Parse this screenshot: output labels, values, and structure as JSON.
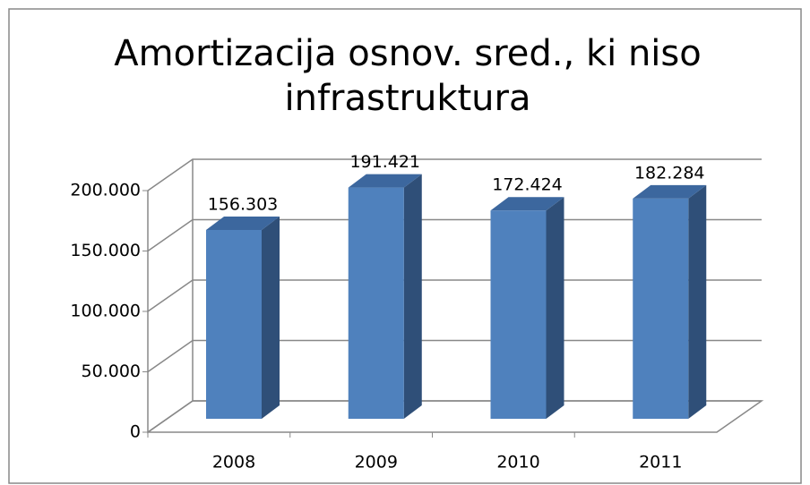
{
  "chart_data": {
    "type": "bar3d",
    "title": [
      "Amortizacija osnov. sred., ki niso",
      "infrastruktura"
    ],
    "categories": [
      "2008",
      "2009",
      "2010",
      "2011"
    ],
    "values": [
      156303,
      191421,
      172424,
      182284
    ],
    "value_labels": [
      "156.303",
      "191.421",
      "172.424",
      "182.284"
    ],
    "color": "#4f81bd",
    "ylim": [
      0,
      200000
    ],
    "yticks": [
      0,
      {
        "value": 50000,
        "label": "50.000"
      },
      {
        "value": 100000,
        "label": "100.000"
      },
      {
        "value": 150000,
        "label": "150.000"
      },
      {
        "value": 200000,
        "label": "200.000"
      }
    ],
    "grid": true
  }
}
